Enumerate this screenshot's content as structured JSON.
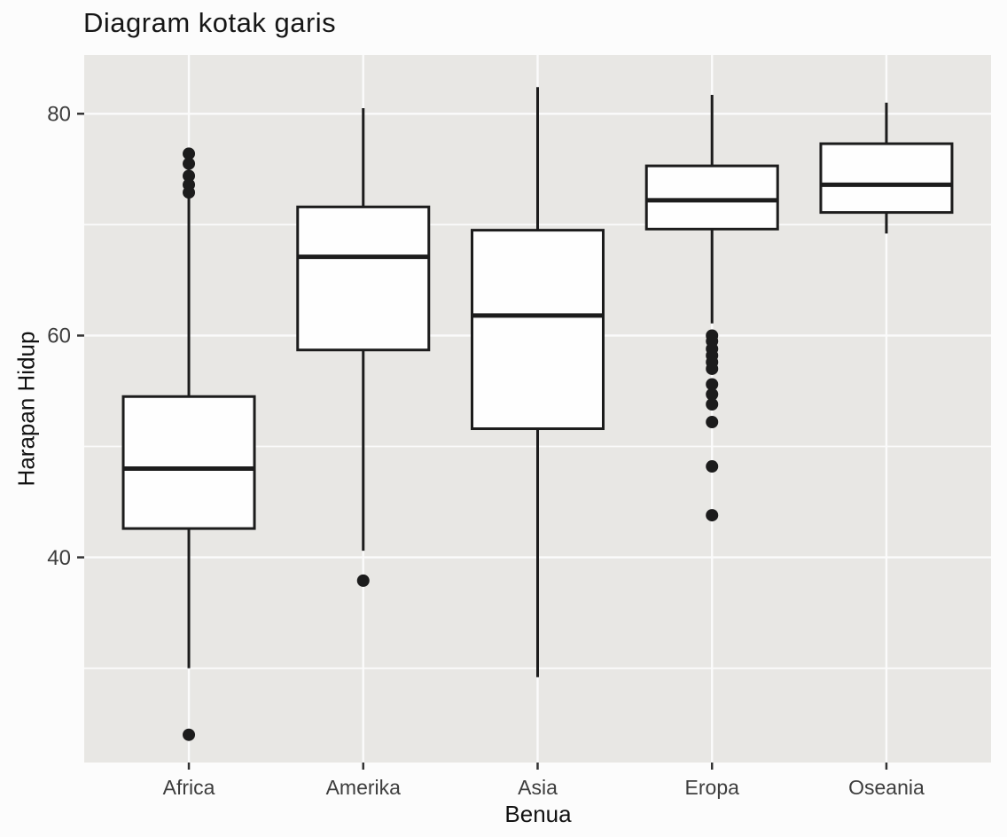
{
  "chart_data": {
    "type": "boxplot",
    "title": "Diagram kotak garis",
    "xlabel": "Benua",
    "ylabel": "Harapan Hidup",
    "categories": [
      "Africa",
      "Amerika",
      "Asia",
      "Eropa",
      "Oseania"
    ],
    "yticks": [
      80,
      60,
      40
    ],
    "yticks_minor": [
      70,
      50,
      30
    ],
    "ylim": [
      21.5,
      85.3
    ],
    "grid": "on",
    "legend": "none",
    "series": [
      {
        "label": "Africa",
        "whisker_low": 30.0,
        "q1": 42.6,
        "median": 48.0,
        "q3": 54.5,
        "whisker_high": 72.4,
        "outliers": [
          76.4,
          75.5,
          74.4,
          73.6,
          72.9,
          24.0
        ]
      },
      {
        "label": "Amerika",
        "whisker_low": 40.6,
        "q1": 58.7,
        "median": 67.1,
        "q3": 71.6,
        "whisker_high": 80.5,
        "outliers": [
          37.9
        ]
      },
      {
        "label": "Asia",
        "whisker_low": 29.2,
        "q1": 51.6,
        "median": 61.8,
        "q3": 69.5,
        "whisker_high": 82.4,
        "outliers": []
      },
      {
        "label": "Eropa",
        "whisker_low": 61.1,
        "q1": 69.6,
        "median": 72.2,
        "q3": 75.3,
        "whisker_high": 81.7,
        "outliers": [
          60.0,
          59.5,
          58.8,
          58.2,
          57.6,
          57.0,
          55.6,
          54.7,
          53.8,
          52.2,
          48.2,
          43.8
        ]
      },
      {
        "label": "Oseania",
        "whisker_low": 69.2,
        "q1": 71.1,
        "median": 73.6,
        "q3": 77.3,
        "whisker_high": 81.0,
        "outliers": []
      }
    ],
    "colors": {
      "panel": "#e8e7e4",
      "grid": "#fbfbfb",
      "box_fill": "#fefefe",
      "line": "#1c1c1c",
      "tick_label": "#3d3d3d",
      "axis_title": "#121212"
    }
  }
}
